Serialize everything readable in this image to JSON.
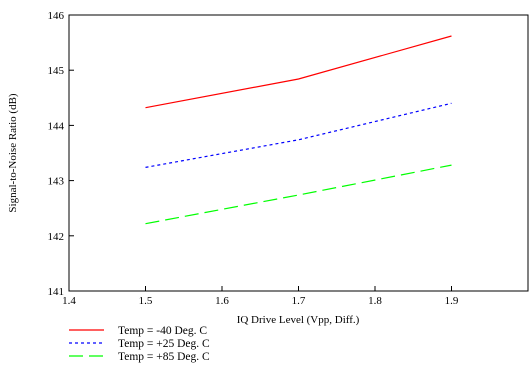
{
  "chart_data": {
    "type": "line",
    "title": "",
    "xlabel": "IQ Drive Level (Vpp, Diff.)",
    "ylabel": "Signal-to-Noise Ratio (dB)",
    "xlim": [
      1.4,
      2.0
    ],
    "ylim": [
      141,
      146
    ],
    "x_ticks": [
      1.4,
      1.5,
      1.6,
      1.7,
      1.8,
      1.9
    ],
    "y_ticks": [
      141,
      142,
      143,
      144,
      145,
      146
    ],
    "x_tick_labels": [
      "1.4",
      "1.5",
      "1.6",
      "1.7",
      "1.8",
      "1.9"
    ],
    "y_tick_labels": [
      "141",
      "142",
      "143",
      "144",
      "145",
      "146"
    ],
    "grid": false,
    "legend_position": "bottom-left",
    "x": [
      1.5,
      1.7,
      1.9
    ],
    "series": [
      {
        "name": "Temp = -40 Deg. C",
        "values": [
          144.32,
          144.84,
          145.62
        ],
        "color": "#ff0000",
        "dash": "solid"
      },
      {
        "name": "Temp = +25 Deg. C",
        "values": [
          143.24,
          143.74,
          144.4
        ],
        "color": "#0000ff",
        "dash": "dotted"
      },
      {
        "name": "Temp = +85 Deg. C",
        "values": [
          142.22,
          142.74,
          143.28
        ],
        "color": "#00ff00",
        "dash": "dashed"
      }
    ]
  }
}
